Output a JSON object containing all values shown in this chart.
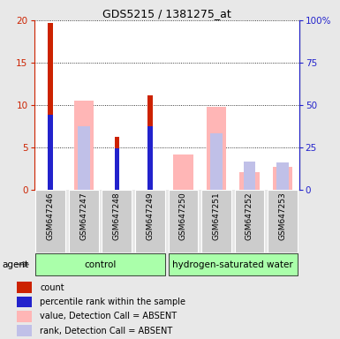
{
  "title": "GDS5215 / 1381275_at",
  "samples": [
    "GSM647246",
    "GSM647247",
    "GSM647248",
    "GSM647249",
    "GSM647250",
    "GSM647251",
    "GSM647252",
    "GSM647253"
  ],
  "red_values": [
    19.7,
    0.0,
    6.3,
    11.2,
    0.0,
    0.0,
    0.0,
    0.0
  ],
  "blue_pct": [
    44.5,
    0.0,
    24.5,
    37.5,
    0.0,
    0.0,
    0.0,
    0.0
  ],
  "pink_values": [
    0.0,
    10.5,
    0.0,
    0.0,
    4.2,
    9.8,
    2.1,
    2.7
  ],
  "lightblue_pct": [
    0.0,
    37.5,
    0.0,
    0.0,
    0.0,
    33.5,
    16.5,
    16.0
  ],
  "ylim_left": [
    0,
    20
  ],
  "ylim_right": [
    0,
    100
  ],
  "yticks_left": [
    0,
    5,
    10,
    15,
    20
  ],
  "yticks_right": [
    0,
    25,
    50,
    75,
    100
  ],
  "ytick_labels_right": [
    "0",
    "25",
    "50",
    "75",
    "100%"
  ],
  "red_color": "#cc2200",
  "blue_color": "#2222cc",
  "pink_color": "#ffb6b6",
  "lightblue_color": "#c0c0e8",
  "bg_color": "#e8e8e8",
  "plot_bg": "#ffffff",
  "green_color": "#aaffaa",
  "gray_color": "#cccccc",
  "group_label_control": "control",
  "group_label_hydrogen": "hydrogen-saturated water",
  "legend_labels": [
    "count",
    "percentile rank within the sample",
    "value, Detection Call = ABSENT",
    "rank, Detection Call = ABSENT"
  ],
  "legend_colors": [
    "#cc2200",
    "#2222cc",
    "#ffb6b6",
    "#c0c0e8"
  ],
  "agent_text": "agent",
  "n_samples": 8,
  "n_control": 4
}
